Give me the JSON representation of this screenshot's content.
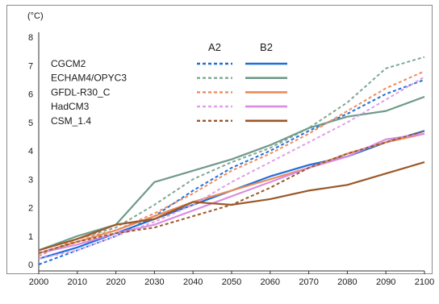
{
  "chart_data": {
    "type": "line",
    "title": "",
    "xlabel": "",
    "ylabel": "(°C)",
    "xlim": [
      2000,
      2100
    ],
    "ylim": [
      0,
      8
    ],
    "x_ticks": [
      "2000",
      "2010",
      "2020",
      "2030",
      "2040",
      "2050",
      "2060",
      "2070",
      "2080",
      "2090",
      "2100"
    ],
    "y_ticks": [
      "0",
      "1",
      "2",
      "3",
      "4",
      "5",
      "6",
      "7",
      "8"
    ],
    "grid": false,
    "legend": {
      "position": "top-center",
      "scenario_headers": [
        "A2",
        "B2"
      ],
      "line_styles": [
        "dashed",
        "solid"
      ]
    },
    "x": [
      2000,
      2010,
      2020,
      2030,
      2040,
      2050,
      2060,
      2070,
      2080,
      2090,
      2100
    ],
    "series": [
      {
        "name": "CGCM2",
        "scenario": "A2",
        "color": "#1f6fd9",
        "values": [
          0.0,
          0.5,
          1.0,
          1.7,
          2.6,
          3.4,
          4.0,
          4.7,
          5.3,
          6.0,
          6.5
        ]
      },
      {
        "name": "CGCM2",
        "scenario": "B2",
        "color": "#1f6fd9",
        "values": [
          0.2,
          0.6,
          1.1,
          1.6,
          2.1,
          2.6,
          3.1,
          3.5,
          3.8,
          4.3,
          4.7
        ]
      },
      {
        "name": "ECHAM4/OPYC3",
        "scenario": "A2",
        "color": "#7fa796",
        "values": [
          0.5,
          0.9,
          1.3,
          2.1,
          3.0,
          3.6,
          4.1,
          4.8,
          5.7,
          6.9,
          7.3
        ]
      },
      {
        "name": "ECHAM4/OPYC3",
        "scenario": "B2",
        "color": "#6f9a89",
        "values": [
          0.5,
          1.0,
          1.4,
          2.9,
          3.3,
          3.7,
          4.2,
          4.8,
          5.2,
          5.4,
          5.9
        ]
      },
      {
        "name": "GFDL-R30_C",
        "scenario": "A2",
        "color": "#f08c5e",
        "values": [
          0.3,
          0.9,
          1.2,
          1.8,
          2.5,
          3.3,
          3.9,
          4.6,
          5.4,
          6.2,
          6.8
        ]
      },
      {
        "name": "GFDL-R30_C",
        "scenario": "B2",
        "color": "#ea8a5c",
        "values": [
          0.4,
          0.8,
          1.2,
          1.7,
          2.2,
          2.6,
          3.0,
          3.4,
          3.9,
          4.3,
          4.6
        ]
      },
      {
        "name": "HadCM3",
        "scenario": "A2",
        "color": "#df9fe6",
        "values": [
          0.2,
          0.5,
          1.0,
          1.5,
          2.1,
          2.9,
          3.6,
          4.3,
          5.0,
          5.8,
          6.6
        ]
      },
      {
        "name": "HadCM3",
        "scenario": "B2",
        "color": "#d98ce0",
        "values": [
          0.4,
          0.7,
          1.1,
          1.4,
          1.9,
          2.4,
          2.9,
          3.4,
          3.8,
          4.4,
          4.6
        ]
      },
      {
        "name": "CSM_1.4",
        "scenario": "A2",
        "color": "#9a5828",
        "values": [
          0.4,
          0.8,
          1.1,
          1.3,
          1.7,
          2.1,
          2.7,
          3.4,
          3.9,
          4.3,
          4.7
        ]
      },
      {
        "name": "CSM_1.4",
        "scenario": "B2",
        "color": "#9a5828",
        "values": [
          0.5,
          0.9,
          1.4,
          1.6,
          2.2,
          2.1,
          2.3,
          2.6,
          2.8,
          3.2,
          3.6
        ]
      }
    ]
  }
}
